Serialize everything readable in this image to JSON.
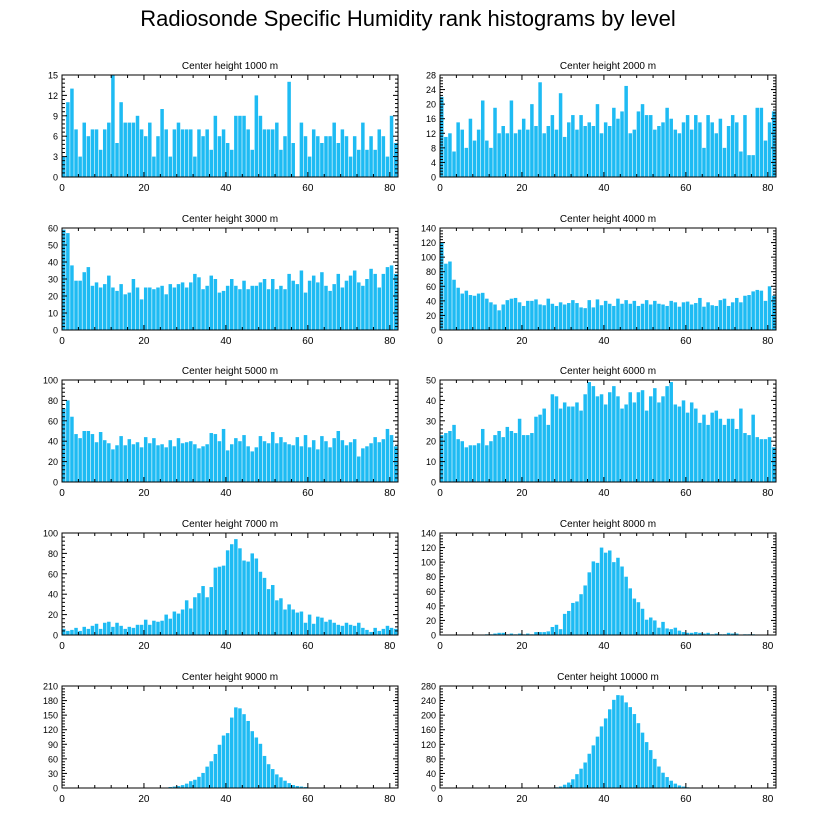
{
  "title": "Radiosonde Specific Humidity rank histograms by level",
  "colors": {
    "bar": "#1ebbf3",
    "axis": "#000000",
    "background": "#ffffff"
  },
  "chart_data": [
    {
      "type": "bar",
      "title": "Center height 1000 m",
      "xlim": [
        0,
        82
      ],
      "ylim": [
        0,
        15
      ],
      "xticks": [
        0,
        20,
        40,
        60,
        80
      ],
      "yticks": [
        0,
        3,
        6,
        9,
        12,
        15
      ],
      "values": [
        3,
        11,
        13,
        7,
        3,
        8,
        6,
        7,
        7,
        4,
        7,
        8,
        15,
        5,
        11,
        8,
        8,
        8,
        9,
        7,
        6,
        8,
        3,
        6,
        10,
        7,
        3,
        7,
        8,
        7,
        7,
        7,
        3,
        7,
        6,
        7,
        4,
        9,
        6,
        7,
        5,
        4,
        9,
        9,
        9,
        7,
        4,
        12,
        9,
        7,
        7,
        7,
        8,
        4,
        6,
        14,
        5,
        0,
        8,
        6,
        3,
        7,
        6,
        5,
        6,
        6,
        8,
        5,
        7,
        6,
        3,
        6,
        4,
        8,
        4,
        6,
        4,
        7,
        6,
        3,
        9,
        5
      ]
    },
    {
      "type": "bar",
      "title": "Center height 2000 m",
      "xlim": [
        0,
        82
      ],
      "ylim": [
        0,
        28
      ],
      "xticks": [
        0,
        20,
        40,
        60,
        80
      ],
      "yticks": [
        0,
        4,
        8,
        12,
        16,
        20,
        24,
        28
      ],
      "values": [
        22,
        11,
        12,
        7,
        15,
        13,
        8,
        16,
        10,
        13,
        21,
        10,
        8,
        19,
        12,
        14,
        12,
        21,
        12,
        13,
        16,
        13,
        20,
        14,
        26,
        12,
        14,
        17,
        13,
        23,
        11,
        15,
        17,
        13,
        17,
        14,
        15,
        14,
        20,
        12,
        15,
        14,
        19,
        16,
        18,
        25,
        12,
        13,
        18,
        20,
        17,
        17,
        13,
        14,
        15,
        19,
        16,
        13,
        12,
        15,
        17,
        13,
        17,
        15,
        8,
        17,
        15,
        12,
        16,
        8,
        14,
        17,
        15,
        7,
        17,
        6,
        6,
        19,
        19,
        10,
        15,
        18
      ]
    },
    {
      "type": "bar",
      "title": "Center height 3000 m",
      "xlim": [
        0,
        82
      ],
      "ylim": [
        0,
        60
      ],
      "xticks": [
        0,
        20,
        40,
        60,
        80
      ],
      "yticks": [
        0,
        10,
        20,
        30,
        40,
        50,
        60
      ],
      "values": [
        59,
        57,
        38,
        29,
        29,
        34,
        37,
        26,
        28,
        25,
        27,
        32,
        25,
        23,
        27,
        21,
        22,
        30,
        25,
        18,
        25,
        25,
        24,
        25,
        26,
        21,
        27,
        25,
        27,
        28,
        25,
        28,
        33,
        31,
        24,
        26,
        32,
        30,
        22,
        23,
        26,
        30,
        26,
        24,
        29,
        24,
        26,
        26,
        28,
        30,
        24,
        30,
        24,
        26,
        24,
        33,
        29,
        27,
        35,
        22,
        29,
        32,
        28,
        34,
        26,
        23,
        27,
        33,
        25,
        29,
        32,
        35,
        28,
        26,
        30,
        36,
        33,
        25,
        33,
        37,
        38,
        33
      ]
    },
    {
      "type": "bar",
      "title": "Center height 4000 m",
      "xlim": [
        0,
        82
      ],
      "ylim": [
        0,
        140
      ],
      "xticks": [
        0,
        20,
        40,
        60,
        80
      ],
      "yticks": [
        0,
        20,
        40,
        60,
        80,
        100,
        120,
        140
      ],
      "values": [
        120,
        91,
        94,
        69,
        58,
        50,
        54,
        48,
        47,
        50,
        51,
        43,
        38,
        35,
        27,
        35,
        41,
        43,
        44,
        38,
        33,
        40,
        40,
        42,
        35,
        34,
        43,
        36,
        33,
        38,
        35,
        37,
        41,
        37,
        31,
        30,
        41,
        31,
        42,
        34,
        40,
        36,
        33,
        43,
        36,
        41,
        36,
        40,
        33,
        36,
        41,
        35,
        40,
        36,
        35,
        33,
        40,
        38,
        32,
        38,
        39,
        35,
        37,
        44,
        32,
        38,
        34,
        33,
        41,
        43,
        33,
        38,
        44,
        38,
        47,
        48,
        53,
        55,
        54,
        40,
        60,
        47
      ]
    },
    {
      "type": "bar",
      "title": "Center height 5000 m",
      "xlim": [
        0,
        82
      ],
      "ylim": [
        0,
        100
      ],
      "xticks": [
        0,
        20,
        40,
        60,
        80
      ],
      "yticks": [
        0,
        20,
        40,
        60,
        80,
        100
      ],
      "values": [
        72,
        80,
        64,
        47,
        43,
        50,
        50,
        47,
        39,
        49,
        41,
        38,
        32,
        36,
        45,
        36,
        42,
        37,
        39,
        34,
        44,
        38,
        43,
        36,
        37,
        34,
        41,
        35,
        43,
        38,
        39,
        40,
        37,
        33,
        35,
        37,
        48,
        47,
        40,
        52,
        31,
        37,
        43,
        40,
        46,
        35,
        30,
        34,
        45,
        40,
        38,
        49,
        38,
        44,
        39,
        37,
        36,
        44,
        35,
        46,
        34,
        41,
        32,
        45,
        40,
        34,
        43,
        50,
        41,
        36,
        39,
        42,
        25,
        33,
        35,
        38,
        44,
        39,
        42,
        52,
        46,
        35
      ]
    },
    {
      "type": "bar",
      "title": "Center height 6000 m",
      "xlim": [
        0,
        82
      ],
      "ylim": [
        0,
        50
      ],
      "xticks": [
        0,
        20,
        40,
        60,
        80
      ],
      "yticks": [
        0,
        10,
        20,
        30,
        40,
        50
      ],
      "values": [
        23,
        24,
        25,
        28,
        21,
        20,
        17,
        18,
        18,
        19,
        26,
        18,
        20,
        23,
        25,
        22,
        27,
        25,
        24,
        31,
        23,
        23,
        24,
        32,
        33,
        36,
        28,
        43,
        42,
        36,
        39,
        37,
        37,
        39,
        35,
        43,
        49,
        47,
        42,
        43,
        38,
        44,
        47,
        42,
        36,
        38,
        44,
        39,
        44,
        45,
        35,
        42,
        46,
        39,
        42,
        47,
        49,
        38,
        37,
        40,
        34,
        39,
        36,
        29,
        33,
        28,
        34,
        35,
        31,
        28,
        31,
        31,
        26,
        36,
        24,
        23,
        33,
        22,
        21,
        21,
        22,
        17
      ]
    },
    {
      "type": "bar",
      "title": "Center height 7000 m",
      "xlim": [
        0,
        82
      ],
      "ylim": [
        0,
        100
      ],
      "xticks": [
        0,
        20,
        40,
        60,
        80
      ],
      "yticks": [
        0,
        20,
        40,
        60,
        80,
        100
      ],
      "values": [
        6,
        4,
        5,
        7,
        4,
        8,
        6,
        9,
        11,
        6,
        12,
        13,
        8,
        12,
        9,
        6,
        8,
        7,
        10,
        10,
        15,
        10,
        14,
        13,
        14,
        20,
        16,
        23,
        21,
        25,
        34,
        26,
        37,
        41,
        48,
        37,
        47,
        66,
        67,
        68,
        83,
        89,
        94,
        85,
        73,
        72,
        80,
        75,
        62,
        56,
        45,
        49,
        34,
        36,
        25,
        30,
        25,
        22,
        23,
        12,
        20,
        11,
        18,
        17,
        13,
        15,
        12,
        10,
        9,
        12,
        10,
        9,
        12,
        7,
        5,
        3,
        7,
        4,
        6,
        9,
        7,
        6
      ]
    },
    {
      "type": "bar",
      "title": "Center height 8000 m",
      "xlim": [
        0,
        82
      ],
      "ylim": [
        0,
        140
      ],
      "xticks": [
        0,
        20,
        40,
        60,
        80
      ],
      "yticks": [
        0,
        20,
        40,
        60,
        80,
        100,
        120,
        140
      ],
      "values": [
        0,
        0,
        0,
        0,
        0,
        0,
        0,
        0,
        0,
        0,
        0,
        1,
        1,
        2,
        3,
        3,
        1,
        2,
        1,
        2,
        1,
        2,
        1,
        4,
        4,
        4,
        5,
        11,
        14,
        8,
        29,
        33,
        44,
        46,
        56,
        68,
        86,
        101,
        99,
        120,
        113,
        116,
        100,
        106,
        94,
        80,
        64,
        50,
        45,
        36,
        21,
        24,
        20,
        10,
        18,
        9,
        8,
        10,
        6,
        4,
        3,
        3,
        4,
        3,
        2,
        3,
        1,
        2,
        1,
        1,
        3,
        2,
        2,
        0,
        1,
        1,
        1,
        0,
        0,
        0,
        0,
        0
      ]
    },
    {
      "type": "bar",
      "title": "Center height 9000 m",
      "xlim": [
        0,
        82
      ],
      "ylim": [
        0,
        210
      ],
      "xticks": [
        0,
        20,
        40,
        60,
        80
      ],
      "yticks": [
        0,
        30,
        60,
        90,
        120,
        150,
        180,
        210
      ],
      "values": [
        0,
        0,
        0,
        0,
        0,
        0,
        0,
        0,
        0,
        0,
        0,
        0,
        0,
        0,
        0,
        0,
        0,
        0,
        0,
        0,
        1,
        1,
        1,
        1,
        1,
        1,
        2,
        3,
        4,
        6,
        9,
        14,
        17,
        23,
        31,
        44,
        55,
        70,
        89,
        108,
        113,
        145,
        166,
        164,
        152,
        138,
        117,
        104,
        91,
        66,
        49,
        39,
        28,
        22,
        15,
        10,
        6,
        4,
        3,
        2,
        1,
        1,
        1,
        1,
        1,
        0,
        0,
        0,
        0,
        0,
        0,
        0,
        0,
        0,
        0,
        0,
        0,
        0,
        0,
        0,
        0,
        0
      ]
    },
    {
      "type": "bar",
      "title": "Center height 10000 m",
      "xlim": [
        0,
        82
      ],
      "ylim": [
        0,
        280
      ],
      "xticks": [
        0,
        20,
        40,
        60,
        80
      ],
      "yticks": [
        0,
        40,
        80,
        120,
        160,
        200,
        240,
        280
      ],
      "values": [
        0,
        0,
        0,
        0,
        0,
        0,
        0,
        0,
        0,
        0,
        0,
        0,
        0,
        0,
        0,
        0,
        0,
        0,
        0,
        0,
        0,
        0,
        0,
        0,
        0,
        0,
        0,
        1,
        2,
        4,
        9,
        15,
        24,
        38,
        53,
        70,
        94,
        117,
        141,
        169,
        191,
        216,
        242,
        255,
        254,
        235,
        222,
        203,
        178,
        152,
        126,
        104,
        80,
        59,
        42,
        30,
        20,
        12,
        7,
        4,
        2,
        1,
        1,
        0,
        0,
        0,
        0,
        0,
        0,
        0,
        0,
        0,
        0,
        0,
        0,
        0,
        0,
        0,
        0,
        0,
        0,
        0
      ]
    }
  ]
}
